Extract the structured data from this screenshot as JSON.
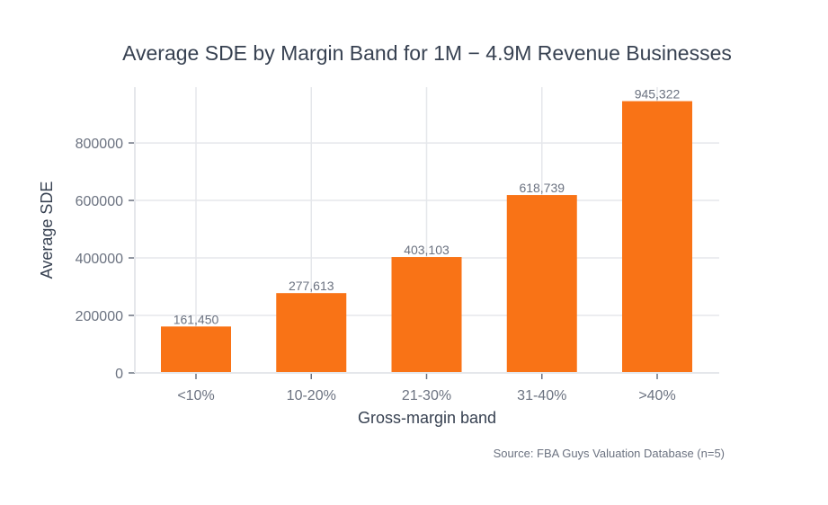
{
  "chart_data": {
    "type": "bar",
    "title": "Average SDE by Margin Band for 1M − 4.9M Revenue Businesses",
    "xlabel": "Gross-margin band",
    "ylabel": "Average SDE",
    "categories": [
      "<10%",
      "10-20%",
      "21-30%",
      "31-40%",
      ">40%"
    ],
    "values": [
      161450,
      277613,
      403103,
      618739,
      945322
    ],
    "data_labels": [
      "161,450",
      "277,613",
      "403,103",
      "618,739",
      "945,322"
    ],
    "yticks": [
      0,
      200000,
      400000,
      600000,
      800000
    ],
    "ytick_labels": [
      "0",
      "200000",
      "400000",
      "600000",
      "800000"
    ],
    "ylim": [
      0,
      994000
    ],
    "grid": true,
    "bar_color": "#f97316",
    "source": "Source: FBA Guys Valuation Database (n=5)"
  }
}
